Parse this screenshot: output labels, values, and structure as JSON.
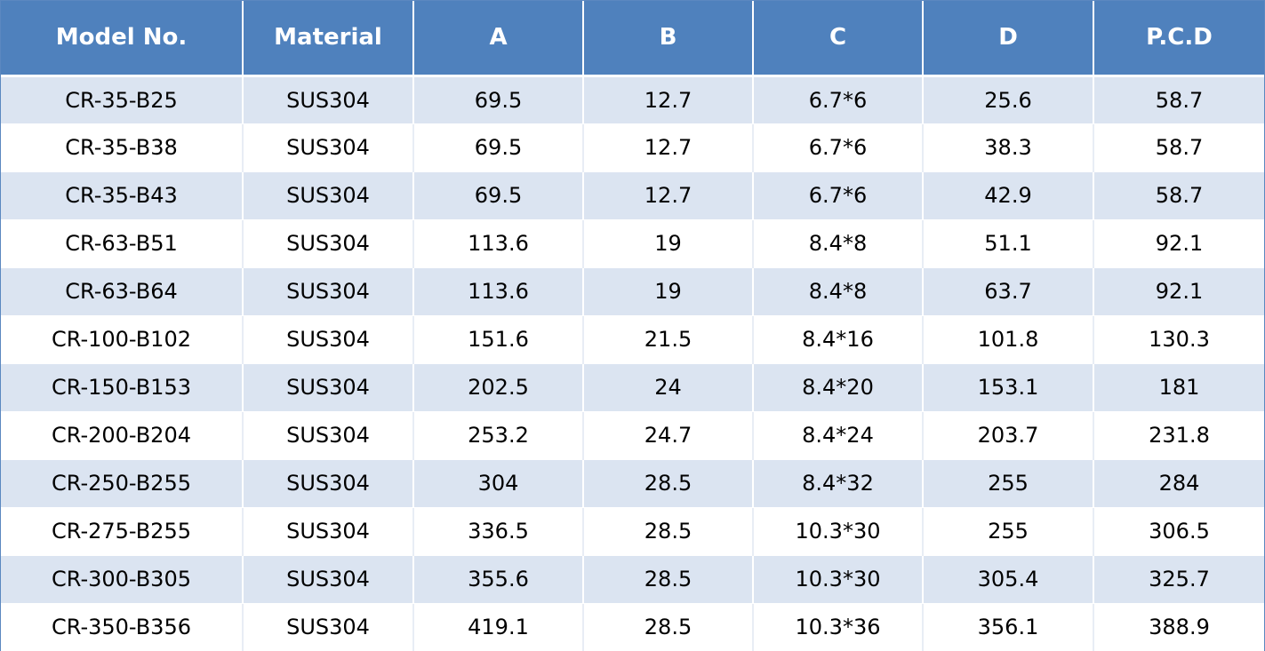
{
  "table": {
    "headers": [
      "Model No.",
      "Material",
      "A",
      "B",
      "C",
      "D",
      "P.C.D"
    ],
    "rows": [
      [
        "CR-35-B25",
        "SUS304",
        "69.5",
        "12.7",
        "6.7*6",
        "25.6",
        "58.7"
      ],
      [
        "CR-35-B38",
        "SUS304",
        "69.5",
        "12.7",
        "6.7*6",
        "38.3",
        "58.7"
      ],
      [
        "CR-35-B43",
        "SUS304",
        "69.5",
        "12.7",
        "6.7*6",
        "42.9",
        "58.7"
      ],
      [
        "CR-63-B51",
        "SUS304",
        "113.6",
        "19",
        "8.4*8",
        "51.1",
        "92.1"
      ],
      [
        "CR-63-B64",
        "SUS304",
        "113.6",
        "19",
        "8.4*8",
        "63.7",
        "92.1"
      ],
      [
        "CR-100-B102",
        "SUS304",
        "151.6",
        "21.5",
        "8.4*16",
        "101.8",
        "130.3"
      ],
      [
        "CR-150-B153",
        "SUS304",
        "202.5",
        "24",
        "8.4*20",
        "153.1",
        "181"
      ],
      [
        "CR-200-B204",
        "SUS304",
        "253.2",
        "24.7",
        "8.4*24",
        "203.7",
        "231.8"
      ],
      [
        "CR-250-B255",
        "SUS304",
        "304",
        "28.5",
        "8.4*32",
        "255",
        "284"
      ],
      [
        "CR-275-B255",
        "SUS304",
        "336.5",
        "28.5",
        "10.3*30",
        "255",
        "306.5"
      ],
      [
        "CR-300-B305",
        "SUS304",
        "355.6",
        "28.5",
        "10.3*30",
        "305.4",
        "325.7"
      ],
      [
        "CR-350-B356",
        "SUS304",
        "419.1",
        "28.5",
        "10.3*36",
        "356.1",
        "388.9"
      ]
    ]
  },
  "colors": {
    "header_bg": "#4f81bd",
    "header_text": "#ffffff",
    "band_row": "#dbe4f1",
    "plain_row": "#ffffff"
  }
}
